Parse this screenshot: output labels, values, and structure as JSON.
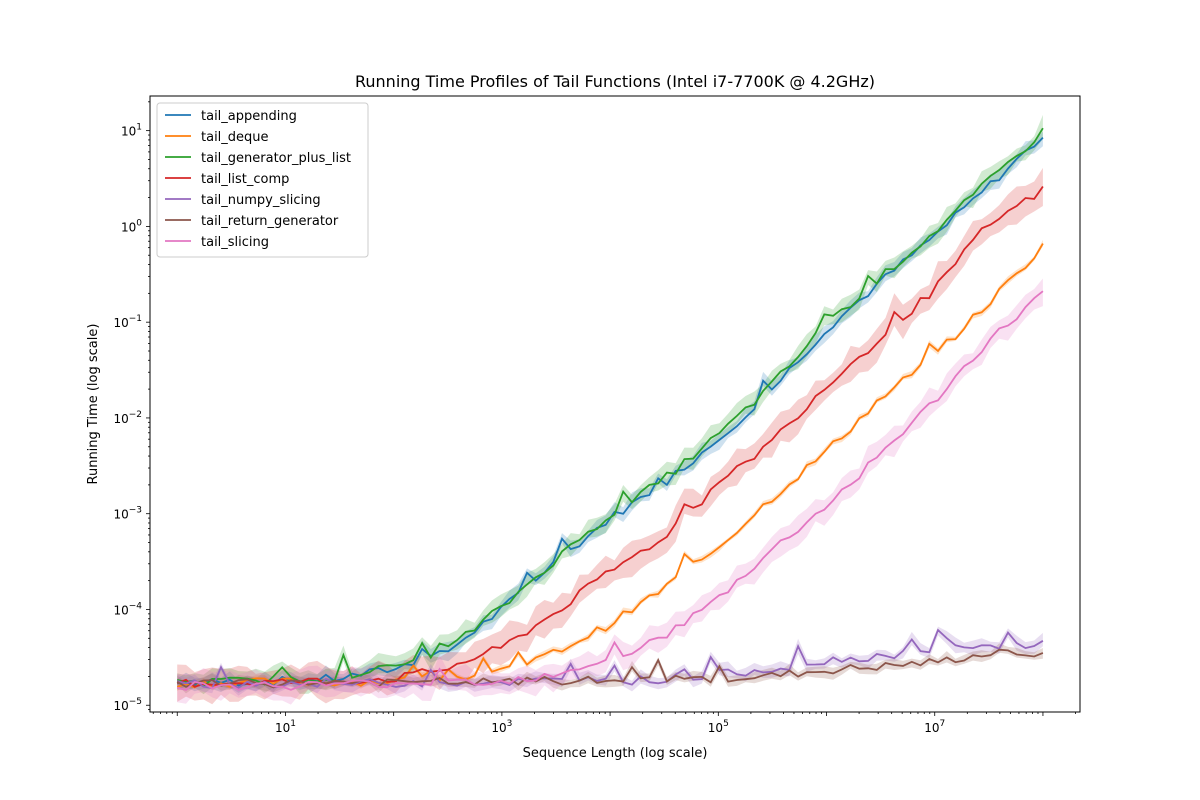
{
  "chart_data": {
    "type": "line",
    "title": "Running Time Profiles of Tail Functions (Intel i7-7700K @ 4.2GHz)",
    "xlabel": "Sequence Length (log scale)",
    "ylabel": "Running Time (log scale)",
    "x_scale": "log",
    "y_scale": "log",
    "xlim": [
      0.56,
      220000000.0
    ],
    "ylim": [
      8.5e-06,
      23
    ],
    "x_ticks": [
      {
        "value": 10,
        "base": "10",
        "exp": "1"
      },
      {
        "value": 1000,
        "base": "10",
        "exp": "3"
      },
      {
        "value": 100000,
        "base": "10",
        "exp": "5"
      },
      {
        "value": 10000000,
        "base": "10",
        "exp": "7"
      }
    ],
    "y_ticks": [
      {
        "value": 1e-05,
        "base": "10",
        "exp": "−5"
      },
      {
        "value": 0.0001,
        "base": "10",
        "exp": "−4"
      },
      {
        "value": 0.001,
        "base": "10",
        "exp": "−3"
      },
      {
        "value": 0.01,
        "base": "10",
        "exp": "−2"
      },
      {
        "value": 0.1,
        "base": "10",
        "exp": "−1"
      },
      {
        "value": 1,
        "base": "10",
        "exp": "0"
      },
      {
        "value": 10,
        "base": "10",
        "exp": "1"
      }
    ],
    "legend_position": "upper-left",
    "grid": false,
    "x": [
      1,
      10,
      30,
      100,
      300,
      1000,
      3000,
      10000,
      30000,
      100000,
      300000,
      1000000,
      3000000,
      10000000,
      30000000,
      100000000
    ],
    "series": [
      {
        "name": "tail_appending",
        "color": "#1f77b4",
        "band": 0.15,
        "values": [
          1.7e-05,
          1.8e-05,
          1.9e-05,
          2.4e-05,
          3.5e-05,
          0.0001,
          0.0003,
          0.0009,
          0.002,
          0.006,
          0.019,
          0.085,
          0.25,
          0.8,
          2.5,
          8.8
        ]
      },
      {
        "name": "tail_deque",
        "color": "#ff7f0e",
        "band": 0.06,
        "values": [
          1.7e-05,
          1.75e-05,
          1.75e-05,
          1.8e-05,
          1.9e-05,
          2.2e-05,
          3.5e-05,
          7e-05,
          0.00016,
          0.00045,
          0.0014,
          0.0045,
          0.015,
          0.045,
          0.15,
          0.62
        ]
      },
      {
        "name": "tail_generator_plus_list",
        "color": "#2ca02c",
        "band": 0.2,
        "values": [
          1.7e-05,
          1.85e-05,
          2e-05,
          2.5e-05,
          3.7e-05,
          0.000105,
          0.00032,
          0.00098,
          0.0022,
          0.0066,
          0.021,
          0.095,
          0.28,
          0.88,
          2.8,
          9.8
        ]
      },
      {
        "name": "tail_list_comp",
        "color": "#d62728",
        "band": 0.3,
        "values": [
          1.7e-05,
          1.75e-05,
          1.8e-05,
          1.9e-05,
          2.4e-05,
          4e-05,
          9e-05,
          0.00025,
          0.00055,
          0.002,
          0.0055,
          0.022,
          0.065,
          0.22,
          1.0,
          2.4
        ]
      },
      {
        "name": "tail_numpy_slicing",
        "color": "#9467bd",
        "band": 0.12,
        "values": [
          1.65e-05,
          1.7e-05,
          1.7e-05,
          1.7e-05,
          1.75e-05,
          1.75e-05,
          1.8e-05,
          1.8e-05,
          1.85e-05,
          2.1e-05,
          2.4e-05,
          2.9e-05,
          3.3e-05,
          3.7e-05,
          4e-05,
          4.4e-05
        ]
      },
      {
        "name": "tail_return_generator",
        "color": "#8c564b",
        "band": 0.1,
        "values": [
          1.65e-05,
          1.7e-05,
          1.75e-05,
          1.7e-05,
          1.75e-05,
          1.75e-05,
          1.8e-05,
          1.8e-05,
          1.85e-05,
          1.9e-05,
          2e-05,
          2.3e-05,
          2.5e-05,
          2.8e-05,
          3.4e-05,
          3.6e-05
        ]
      },
      {
        "name": "tail_slicing",
        "color": "#e377c2",
        "band": 0.25,
        "values": [
          1.6e-05,
          1.6e-05,
          1.65e-05,
          1.7e-05,
          1.75e-05,
          1.8e-05,
          2.1e-05,
          3.1e-05,
          5e-05,
          0.00013,
          0.0004,
          0.0012,
          0.004,
          0.015,
          0.06,
          0.2
        ]
      }
    ]
  }
}
